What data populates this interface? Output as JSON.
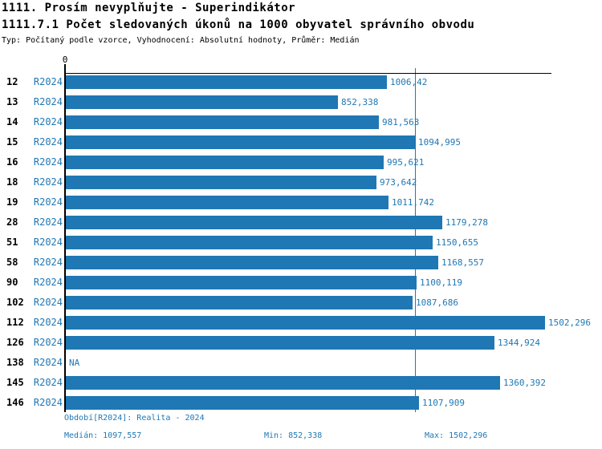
{
  "header": {
    "title": "1111. Prosím nevyplňujte - Superindikátor",
    "subtitle": "1111.7.1 Počet sledovaných úkonů na 1000 obyvatel správního obvodu",
    "meta": "Typ: Počítaný podle vzorce, Vyhodnocení: Absolutní hodnoty, Průměr: Medián"
  },
  "axis": {
    "zero_label": "0"
  },
  "rows": [
    {
      "id": "12",
      "period": "R2024",
      "value": 1006.42,
      "label": "1006,42"
    },
    {
      "id": "13",
      "period": "R2024",
      "value": 852.338,
      "label": "852,338"
    },
    {
      "id": "14",
      "period": "R2024",
      "value": 981.563,
      "label": "981,563"
    },
    {
      "id": "15",
      "period": "R2024",
      "value": 1094.995,
      "label": "1094,995"
    },
    {
      "id": "16",
      "period": "R2024",
      "value": 995.621,
      "label": "995,621"
    },
    {
      "id": "18",
      "period": "R2024",
      "value": 973.642,
      "label": "973,642"
    },
    {
      "id": "19",
      "period": "R2024",
      "value": 1011.742,
      "label": "1011,742"
    },
    {
      "id": "28",
      "period": "R2024",
      "value": 1179.278,
      "label": "1179,278"
    },
    {
      "id": "51",
      "period": "R2024",
      "value": 1150.655,
      "label": "1150,655"
    },
    {
      "id": "58",
      "period": "R2024",
      "value": 1168.557,
      "label": "1168,557"
    },
    {
      "id": "90",
      "period": "R2024",
      "value": 1100.119,
      "label": "1100,119"
    },
    {
      "id": "102",
      "period": "R2024",
      "value": 1087.686,
      "label": "1087,686"
    },
    {
      "id": "112",
      "period": "R2024",
      "value": 1502.296,
      "label": "1502,296"
    },
    {
      "id": "126",
      "period": "R2024",
      "value": 1344.924,
      "label": "1344,924"
    },
    {
      "id": "138",
      "period": "R2024",
      "value": null,
      "label": "NA"
    },
    {
      "id": "145",
      "period": "R2024",
      "value": 1360.392,
      "label": "1360,392"
    },
    {
      "id": "146",
      "period": "R2024",
      "value": 1107.909,
      "label": "1107,909"
    }
  ],
  "median_value": 1097.557,
  "footer": {
    "period_line": "Období[R2024]: Realita - 2024",
    "median": "Medián: 1097,557",
    "min": "Min: 852,338",
    "max": "Max: 1502,296"
  },
  "colors": {
    "bar": "#1f77b4",
    "blue_text": "#1f77b4",
    "axis": "#000000"
  },
  "chart_data": {
    "type": "bar",
    "orientation": "horizontal",
    "title": "1111.7.1 Počet sledovaných úkonů na 1000 obyvatel správního obvodu",
    "supertitle": "1111. Prosím nevyplňujte - Superindikátor",
    "categories": [
      "12",
      "13",
      "14",
      "15",
      "16",
      "18",
      "19",
      "28",
      "51",
      "58",
      "90",
      "102",
      "112",
      "126",
      "138",
      "145",
      "146"
    ],
    "series": [
      {
        "name": "R2024",
        "values": [
          1006.42,
          852.338,
          981.563,
          1094.995,
          995.621,
          973.642,
          1011.742,
          1179.278,
          1150.655,
          1168.557,
          1100.119,
          1087.686,
          1502.296,
          1344.924,
          null,
          1360.392,
          1107.909
        ]
      }
    ],
    "value_axis_range": [
      0,
      1520
    ],
    "value_axis_ticks": [
      "0"
    ],
    "median_reference_line": 1097.557,
    "stats": {
      "median": 1097.557,
      "min": 852.338,
      "max": 1502.296
    },
    "na_categories": [
      "138"
    ],
    "grid": false,
    "legend_position": "none",
    "bar_color": "#1f77b4"
  }
}
